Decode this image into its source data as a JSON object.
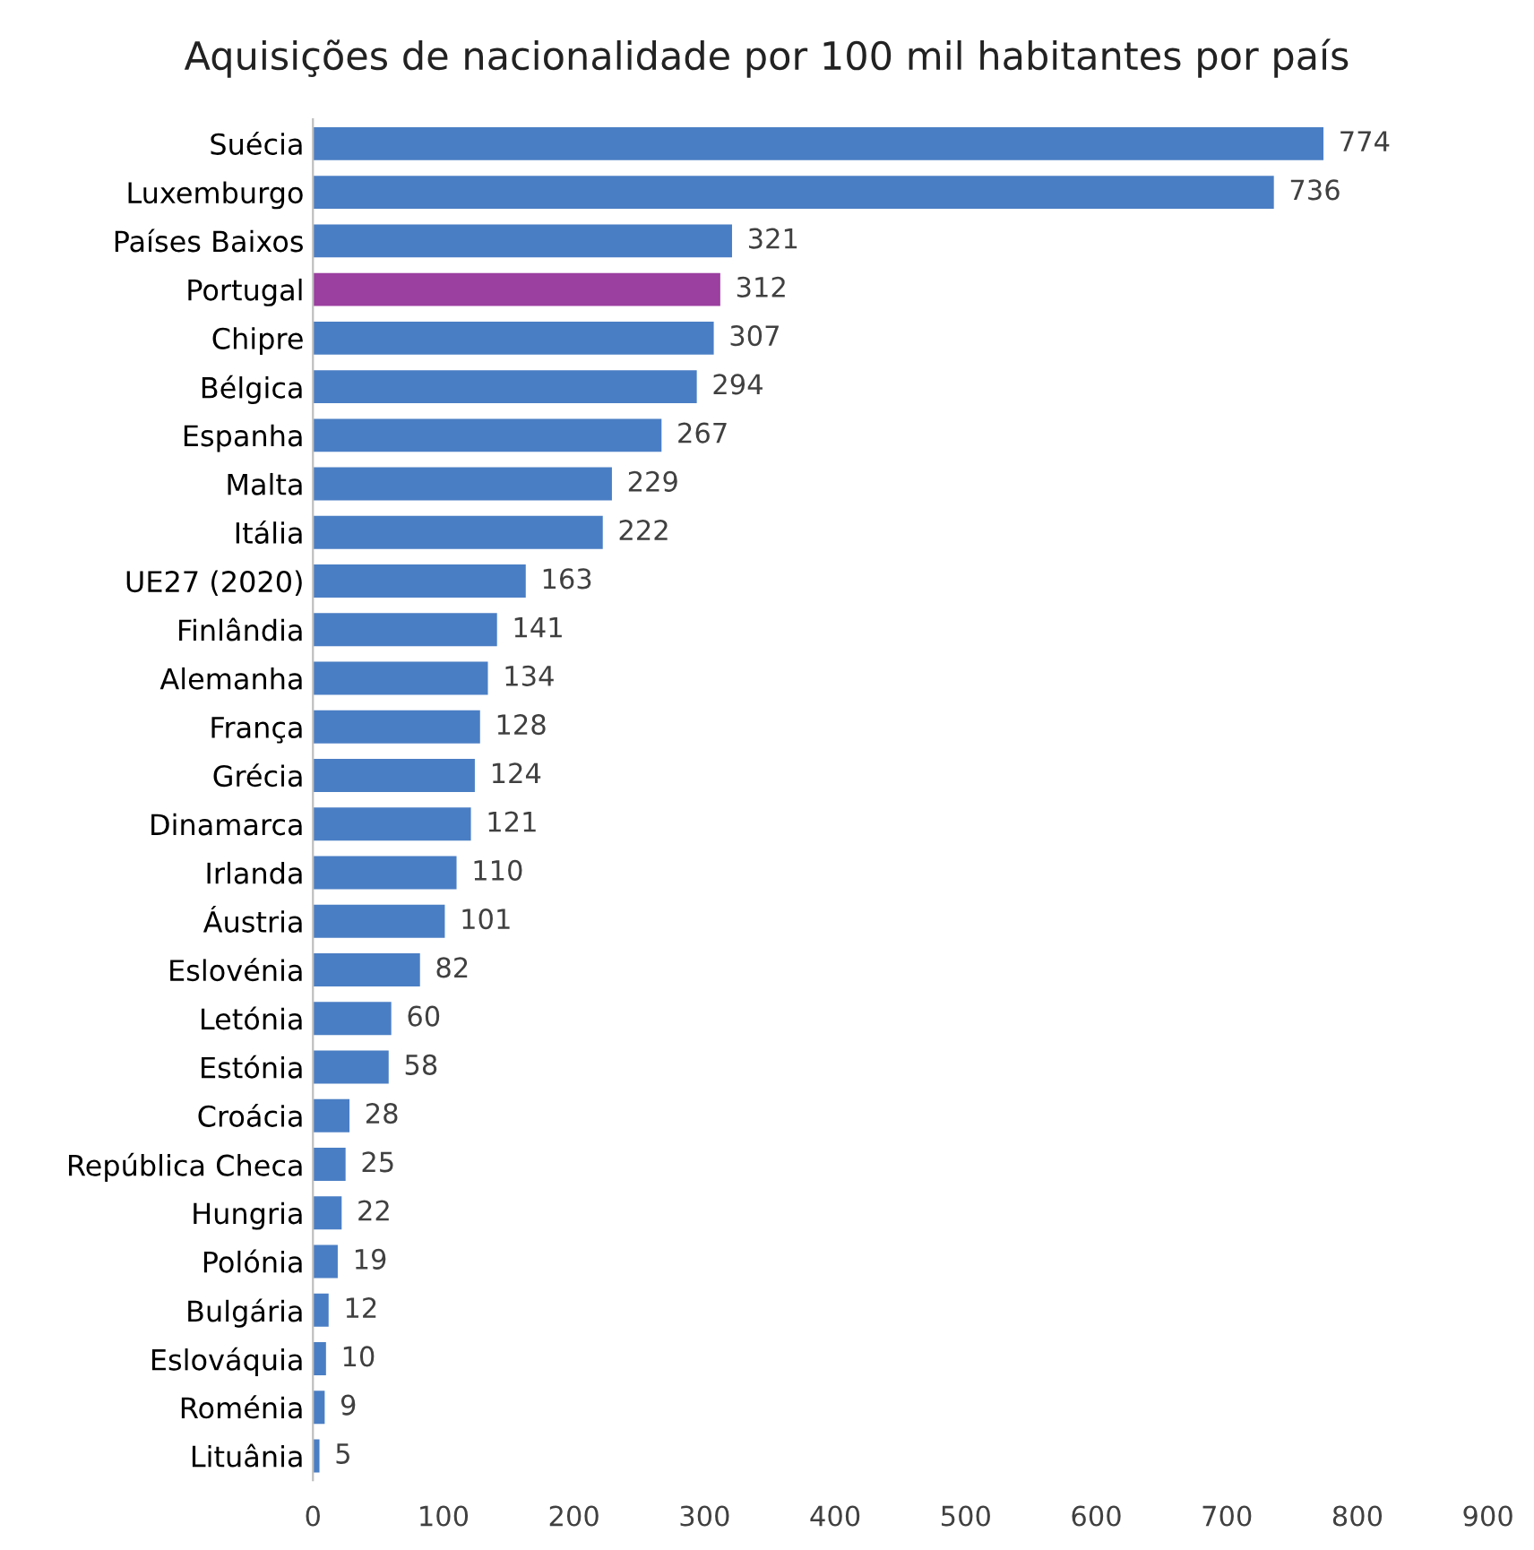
{
  "chart_data": {
    "type": "bar",
    "orientation": "horizontal",
    "title": "Aquisições de nacionalidade por 100 mil habitantes por país",
    "categories": [
      "Suécia",
      "Luxemburgo",
      "Países Baixos",
      "Portugal",
      "Chipre",
      "Bélgica",
      "Espanha",
      "Malta",
      "Itália",
      "UE27 (2020)",
      "Finlândia",
      "Alemanha",
      "França",
      "Grécia",
      "Dinamarca",
      "Irlanda",
      "Áustria",
      "Eslovénia",
      "Letónia",
      "Estónia",
      "Croácia",
      "República Checa",
      "Hungria",
      "Polónia",
      "Bulgária",
      "Eslováquia",
      "Roménia",
      "Lituânia"
    ],
    "values": [
      774,
      736,
      321,
      312,
      307,
      294,
      267,
      229,
      222,
      163,
      141,
      134,
      128,
      124,
      121,
      110,
      101,
      82,
      60,
      58,
      28,
      25,
      22,
      19,
      12,
      10,
      9,
      5
    ],
    "colors": [
      "#4a7ec4",
      "#4a7ec4",
      "#4a7ec4",
      "#9b3fa0",
      "#4a7ec4",
      "#4a7ec4",
      "#4a7ec4",
      "#4a7ec4",
      "#4a7ec4",
      "#4a7ec4",
      "#4a7ec4",
      "#4a7ec4",
      "#4a7ec4",
      "#4a7ec4",
      "#4a7ec4",
      "#4a7ec4",
      "#4a7ec4",
      "#4a7ec4",
      "#4a7ec4",
      "#4a7ec4",
      "#4a7ec4",
      "#4a7ec4",
      "#4a7ec4",
      "#4a7ec4",
      "#4a7ec4",
      "#4a7ec4",
      "#4a7ec4",
      "#4a7ec4"
    ],
    "xlim": [
      0,
      900
    ],
    "xticks": [
      0,
      100,
      200,
      300,
      400,
      500,
      600,
      700,
      800,
      900
    ],
    "data_labels": true,
    "grid": false
  }
}
